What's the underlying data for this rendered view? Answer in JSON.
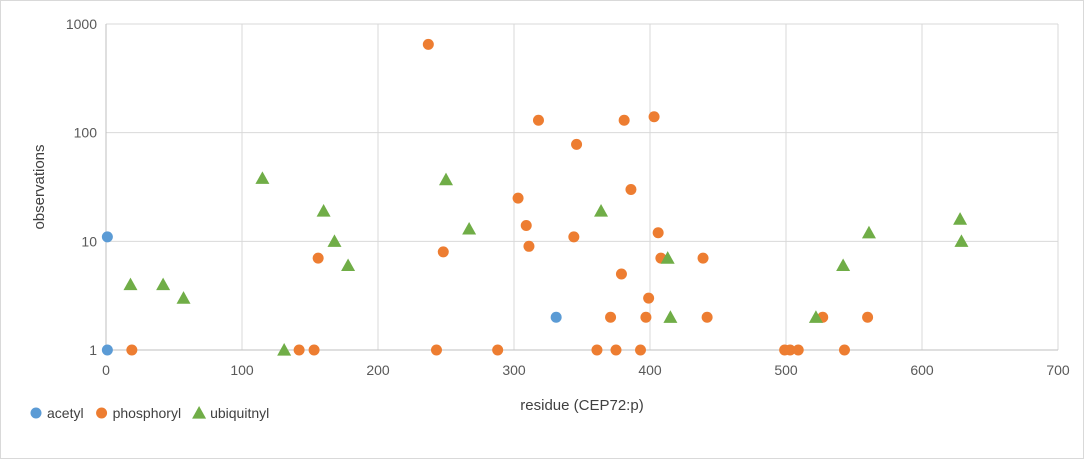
{
  "chart_data": {
    "type": "scatter",
    "title": "",
    "xlabel": "residue (CEP72:p)",
    "ylabel": "observations",
    "xlim": [
      0,
      700
    ],
    "ylim": [
      1,
      1000
    ],
    "yscale": "log",
    "grid": true,
    "legend_position": "bottom-left",
    "xticks": [
      "0",
      "100",
      "200",
      "300",
      "400",
      "500",
      "600",
      "700"
    ],
    "yticks": [
      "1",
      "10",
      "100",
      "1000"
    ],
    "series": [
      {
        "name": "acetyl",
        "marker": "circle",
        "color": "#5b9bd5",
        "points": [
          [
            1,
            11
          ],
          [
            1,
            1
          ],
          [
            331,
            2
          ]
        ]
      },
      {
        "name": "phosphoryl",
        "marker": "circle",
        "color": "#ed7d31",
        "points": [
          [
            19,
            1
          ],
          [
            142,
            1
          ],
          [
            153,
            1
          ],
          [
            156,
            7
          ],
          [
            237,
            650
          ],
          [
            243,
            1
          ],
          [
            248,
            8
          ],
          [
            288,
            1
          ],
          [
            303,
            25
          ],
          [
            309,
            14
          ],
          [
            311,
            9
          ],
          [
            318,
            130
          ],
          [
            344,
            11
          ],
          [
            346,
            78
          ],
          [
            361,
            1
          ],
          [
            371,
            2
          ],
          [
            375,
            1
          ],
          [
            379,
            5
          ],
          [
            381,
            130
          ],
          [
            386,
            30
          ],
          [
            393,
            1
          ],
          [
            397,
            2
          ],
          [
            399,
            3
          ],
          [
            403,
            140
          ],
          [
            406,
            12
          ],
          [
            408,
            7
          ],
          [
            439,
            7
          ],
          [
            442,
            2
          ],
          [
            499,
            1
          ],
          [
            503,
            1
          ],
          [
            509,
            1
          ],
          [
            527,
            2
          ],
          [
            543,
            1
          ],
          [
            560,
            2
          ]
        ]
      },
      {
        "name": "ubiquitnyl",
        "marker": "triangle",
        "color": "#70ad47",
        "points": [
          [
            18,
            4
          ],
          [
            42,
            4
          ],
          [
            57,
            3
          ],
          [
            115,
            38
          ],
          [
            131,
            1
          ],
          [
            160,
            19
          ],
          [
            168,
            10
          ],
          [
            178,
            6
          ],
          [
            250,
            37
          ],
          [
            267,
            13
          ],
          [
            364,
            19
          ],
          [
            413,
            7
          ],
          [
            415,
            2
          ],
          [
            522,
            2
          ],
          [
            542,
            6
          ],
          [
            561,
            12
          ],
          [
            628,
            16
          ],
          [
            629,
            10
          ]
        ]
      }
    ]
  }
}
